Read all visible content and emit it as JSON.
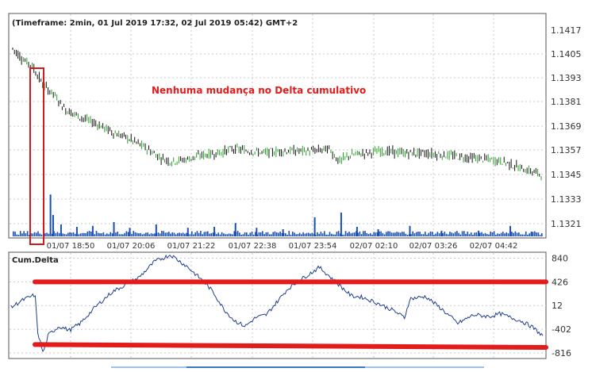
{
  "chart_data": [
    {
      "type": "candlestick",
      "title": "(Timeframe: 2min, 01 Jul 2019 17:32, 02 Jul 2019 05:42) GMT+2",
      "annotation": "Nenhuma mudança no Delta cumulativo",
      "y_ticks": [
        "1.1417",
        "1.1405",
        "1.1393",
        "1.1381",
        "1.1369",
        "1.1357",
        "1.1345",
        "1.1333",
        "1.1321"
      ],
      "x_ticks": [
        "01/07 18:50",
        "01/07 20:06",
        "01/07 21:22",
        "01/07 22:38",
        "01/07 23:54",
        "02/07 02:10",
        "02/07 03:26",
        "02/07 04:42"
      ],
      "ylim": [
        1.1315,
        1.1421
      ],
      "price_path": [
        [
          0.0,
          1.1405
        ],
        [
          0.02,
          1.14
        ],
        [
          0.04,
          1.1396
        ],
        [
          0.06,
          1.1387
        ],
        [
          0.08,
          1.1383
        ],
        [
          0.1,
          1.1376
        ],
        [
          0.13,
          1.1372
        ],
        [
          0.16,
          1.1369
        ],
        [
          0.19,
          1.1365
        ],
        [
          0.22,
          1.1362
        ],
        [
          0.25,
          1.1358
        ],
        [
          0.28,
          1.1353
        ],
        [
          0.3,
          1.1351
        ],
        [
          0.33,
          1.1352
        ],
        [
          0.36,
          1.1354
        ],
        [
          0.39,
          1.1355
        ],
        [
          0.42,
          1.1357
        ],
        [
          0.45,
          1.1356
        ],
        [
          0.48,
          1.1355
        ],
        [
          0.51,
          1.1356
        ],
        [
          0.54,
          1.1356
        ],
        [
          0.57,
          1.1356
        ],
        [
          0.6,
          1.1357
        ],
        [
          0.62,
          1.1351
        ],
        [
          0.64,
          1.1354
        ],
        [
          0.67,
          1.1355
        ],
        [
          0.7,
          1.1356
        ],
        [
          0.74,
          1.1355
        ],
        [
          0.78,
          1.1355
        ],
        [
          0.82,
          1.1354
        ],
        [
          0.86,
          1.1353
        ],
        [
          0.9,
          1.1352
        ],
        [
          0.93,
          1.1351
        ],
        [
          0.96,
          1.1348
        ],
        [
          1.0,
          1.1345
        ]
      ],
      "volume_spikes": [
        [
          0.07,
          0.88
        ],
        [
          0.075,
          0.45
        ],
        [
          0.09,
          0.25
        ],
        [
          0.12,
          0.2
        ],
        [
          0.15,
          0.22
        ],
        [
          0.19,
          0.3
        ],
        [
          0.22,
          0.18
        ],
        [
          0.27,
          0.25
        ],
        [
          0.33,
          0.18
        ],
        [
          0.38,
          0.2
        ],
        [
          0.42,
          0.28
        ],
        [
          0.46,
          0.18
        ],
        [
          0.51,
          0.15
        ],
        [
          0.57,
          0.4
        ],
        [
          0.62,
          0.5
        ],
        [
          0.65,
          0.2
        ],
        [
          0.69,
          0.15
        ],
        [
          0.75,
          0.22
        ],
        [
          0.81,
          0.12
        ],
        [
          0.88,
          0.12
        ],
        [
          0.94,
          0.22
        ],
        [
          0.98,
          0.1
        ]
      ],
      "volume_color": "#1a4fb3",
      "bull_color": "#2aa02a",
      "bear_color": "#111111"
    },
    {
      "type": "line",
      "title": "Cum.Delta",
      "y_ticks": [
        {
          "label": "840",
          "color": "#2a2aa6"
        },
        {
          "label": "426",
          "color": "#2a2aa6"
        },
        {
          "label": "12",
          "color": "#2a2aa6"
        },
        {
          "label": "-402",
          "color": "#a61a1a"
        },
        {
          "label": "-816",
          "color": "#a61a1a"
        }
      ],
      "ylim": [
        -900,
        930
      ],
      "series": [
        {
          "line_color": "#1f3f8f",
          "values": [
            [
              0.0,
              -20
            ],
            [
              0.02,
              100
            ],
            [
              0.045,
              200
            ],
            [
              0.05,
              -450
            ],
            [
              0.06,
              -816
            ],
            [
              0.07,
              -500
            ],
            [
              0.09,
              -350
            ],
            [
              0.11,
              -420
            ],
            [
              0.13,
              -300
            ],
            [
              0.16,
              0
            ],
            [
              0.19,
              250
            ],
            [
              0.21,
              350
            ],
            [
              0.24,
              500
            ],
            [
              0.27,
              780
            ],
            [
              0.3,
              900
            ],
            [
              0.33,
              700
            ],
            [
              0.36,
              450
            ],
            [
              0.38,
              250
            ],
            [
              0.4,
              -50
            ],
            [
              0.42,
              -250
            ],
            [
              0.44,
              -350
            ],
            [
              0.46,
              -200
            ],
            [
              0.48,
              -150
            ],
            [
              0.52,
              300
            ],
            [
              0.55,
              500
            ],
            [
              0.58,
              680
            ],
            [
              0.61,
              430
            ],
            [
              0.64,
              180
            ],
            [
              0.66,
              160
            ],
            [
              0.69,
              50
            ],
            [
              0.72,
              -80
            ],
            [
              0.74,
              -200
            ],
            [
              0.75,
              130
            ],
            [
              0.78,
              170
            ],
            [
              0.81,
              -50
            ],
            [
              0.84,
              -300
            ],
            [
              0.87,
              -150
            ],
            [
              0.9,
              -180
            ],
            [
              0.92,
              -130
            ],
            [
              0.94,
              -200
            ],
            [
              0.96,
              -260
            ],
            [
              0.98,
              -360
            ],
            [
              1.0,
              -520
            ]
          ]
        }
      ]
    }
  ],
  "overlay_lines": [
    {
      "from": 426,
      "to": 426,
      "color": "#e21b1b",
      "label": "top"
    },
    {
      "from": -670,
      "to": -720,
      "color": "#e21b1b",
      "label": "bottom"
    }
  ]
}
